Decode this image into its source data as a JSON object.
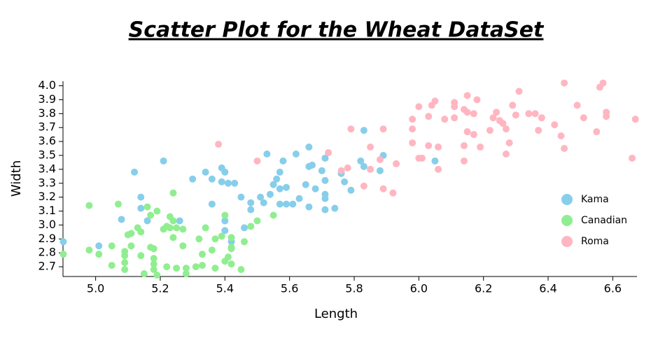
{
  "chart_data": {
    "type": "scatter",
    "title": "Scatter Plot for the Wheat DataSet",
    "x_label": "Length",
    "y_label": "Width",
    "legend": "right",
    "xlim": [
      4.899,
      6.675
    ],
    "ylim": [
      2.63,
      4.033
    ],
    "xticks": [
      {
        "value": 5,
        "label": "5.0"
      },
      5.2,
      5.4,
      5.6,
      5.8,
      {
        "value": 6,
        "label": "6.0"
      },
      6.2,
      6.4,
      6.6
    ],
    "yticks": [
      2.7,
      2.8,
      2.9,
      {
        "value": 3,
        "label": "3.0"
      },
      3.1,
      3.2,
      3.3,
      3.4,
      3.5,
      3.6,
      3.7,
      3.8,
      3.9,
      {
        "value": 4,
        "label": "4.0"
      }
    ],
    "series": [
      {
        "name": "Kama",
        "color": "#87ceeb",
        "x": [
          4.9,
          5.01,
          5.12,
          5.21,
          5.14,
          5.14,
          5.08,
          5.16,
          5.26,
          5.3,
          5.34,
          5.36,
          5.36,
          5.39,
          5.4,
          5.39,
          5.41,
          5.43,
          5.4,
          5.4,
          5.42,
          5.45,
          5.46,
          5.48,
          5.48,
          5.51,
          5.53,
          5.52,
          5.54,
          5.55,
          5.56,
          5.57,
          5.57,
          5.58,
          5.59,
          5.57,
          5.59,
          5.62,
          5.61,
          5.63,
          5.66,
          5.66,
          5.67,
          5.65,
          5.66,
          5.68,
          5.71,
          5.7,
          5.71,
          5.71,
          5.71,
          5.71,
          5.74,
          5.76,
          5.77,
          5.79,
          5.83,
          5.82,
          5.83,
          5.88,
          5.89,
          6.05
        ],
        "y": [
          2.88,
          2.85,
          3.38,
          3.46,
          3.2,
          3.12,
          3.04,
          3.03,
          3.03,
          3.33,
          3.38,
          3.33,
          3.15,
          3.41,
          3.38,
          3.31,
          3.3,
          3.3,
          3.03,
          2.96,
          2.88,
          3.2,
          2.98,
          3.16,
          3.11,
          3.2,
          3.51,
          3.16,
          3.22,
          3.29,
          3.33,
          3.26,
          3.38,
          3.46,
          3.27,
          3.15,
          3.15,
          3.51,
          3.15,
          3.19,
          3.56,
          3.42,
          3.43,
          3.29,
          3.13,
          3.26,
          3.48,
          3.39,
          3.22,
          3.32,
          3.19,
          3.11,
          3.12,
          3.37,
          3.31,
          3.25,
          3.68,
          3.46,
          3.42,
          3.39,
          3.5,
          3.46
        ]
      },
      {
        "name": "Canadian",
        "color": "#90ee90",
        "x": [
          4.9,
          4.98,
          4.98,
          5.01,
          5.05,
          5.05,
          5.07,
          5.09,
          5.09,
          5.09,
          5.09,
          5.1,
          5.11,
          5.11,
          5.13,
          5.14,
          5.14,
          5.15,
          5.16,
          5.17,
          5.17,
          5.18,
          5.18,
          5.18,
          5.18,
          5.19,
          5.19,
          5.21,
          5.22,
          5.22,
          5.23,
          5.23,
          5.24,
          5.24,
          5.24,
          5.25,
          5.25,
          5.27,
          5.27,
          5.28,
          5.28,
          5.31,
          5.33,
          5.33,
          5.34,
          5.32,
          5.36,
          5.37,
          5.37,
          5.39,
          5.4,
          5.4,
          5.41,
          5.42,
          5.42,
          5.42,
          5.42,
          5.45,
          5.46,
          5.48,
          5.5,
          5.55
        ],
        "y": [
          2.79,
          3.14,
          2.82,
          2.79,
          2.71,
          2.85,
          3.15,
          2.81,
          2.78,
          2.73,
          2.68,
          2.93,
          2.94,
          2.85,
          2.98,
          2.95,
          2.78,
          2.65,
          3.13,
          3.07,
          2.84,
          2.83,
          2.76,
          2.72,
          2.68,
          2.64,
          3.1,
          2.97,
          2.99,
          2.7,
          3.06,
          2.98,
          3.03,
          3.23,
          2.91,
          2.98,
          2.69,
          2.85,
          2.97,
          2.65,
          2.69,
          2.7,
          2.79,
          2.71,
          2.98,
          2.9,
          2.82,
          2.9,
          2.69,
          2.92,
          3.07,
          2.74,
          2.77,
          2.91,
          2.83,
          2.84,
          2.72,
          2.68,
          2.88,
          2.99,
          3.03,
          3.07
        ]
      },
      {
        "name": "Roma",
        "color": "#ffb6c1",
        "x": [
          5.38,
          5.5,
          5.72,
          5.76,
          5.78,
          5.79,
          5.83,
          5.85,
          5.85,
          5.88,
          5.89,
          5.89,
          5.92,
          5.93,
          5.98,
          5.98,
          5.98,
          6.0,
          6.0,
          6.01,
          6.03,
          6.03,
          6.04,
          6.05,
          6.06,
          6.06,
          6.08,
          6.11,
          6.11,
          6.11,
          6.14,
          6.14,
          6.14,
          6.15,
          6.15,
          6.15,
          6.17,
          6.17,
          6.18,
          6.19,
          6.22,
          6.23,
          6.24,
          6.25,
          6.26,
          6.27,
          6.27,
          6.29,
          6.28,
          6.3,
          6.31,
          6.34,
          6.36,
          6.37,
          6.38,
          6.42,
          6.44,
          6.45,
          6.45,
          6.49,
          6.51,
          6.55,
          6.56,
          6.57,
          6.58,
          6.58,
          6.66,
          6.67
        ],
        "y": [
          3.58,
          3.46,
          3.52,
          3.39,
          3.41,
          3.69,
          3.28,
          3.4,
          3.56,
          3.47,
          3.26,
          3.69,
          3.23,
          3.44,
          3.76,
          3.69,
          3.59,
          3.48,
          3.85,
          3.48,
          3.57,
          3.78,
          3.86,
          3.89,
          3.56,
          3.4,
          3.76,
          3.77,
          3.88,
          3.85,
          3.46,
          3.57,
          3.83,
          3.81,
          3.67,
          3.93,
          3.8,
          3.65,
          3.9,
          3.56,
          3.68,
          3.77,
          3.81,
          3.75,
          3.73,
          3.51,
          3.69,
          3.86,
          3.59,
          3.79,
          3.96,
          3.8,
          3.8,
          3.68,
          3.77,
          3.72,
          3.64,
          3.55,
          4.02,
          3.86,
          3.77,
          3.67,
          3.99,
          4.02,
          3.81,
          3.78,
          3.48,
          3.76
        ]
      }
    ]
  }
}
